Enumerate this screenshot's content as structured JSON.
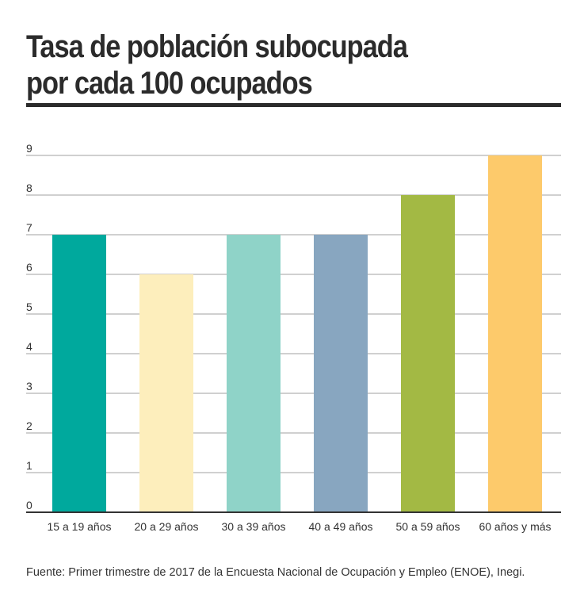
{
  "title_line1": "Tasa de población subocupada",
  "title_line2": "por cada 100 ocupados",
  "source": "Fuente:  Primer trimestre de 2017 de la Encuesta Nacional de Ocupación y Empleo (ENOE), Inegi.",
  "chart_data": {
    "type": "bar",
    "title": "Tasa de población subocupada por cada 100 ocupados",
    "xlabel": "",
    "ylabel": "",
    "categories": [
      "15 a 19 años",
      "20 a 29 años",
      "30 a 39 años",
      "40 a 49 años",
      "50 a 59 años",
      "60 años y más"
    ],
    "values": [
      7,
      6,
      7,
      7,
      8,
      9
    ],
    "colors": [
      "#00a99d",
      "#fdeebc",
      "#8fd3c8",
      "#88a6c0",
      "#a3b944",
      "#fdca6b"
    ],
    "ylim": [
      0,
      9
    ],
    "yticks": [
      "0",
      "1",
      "2",
      "3",
      "4",
      "5",
      "6",
      "7",
      "8",
      "9"
    ],
    "grid": true,
    "legend": "none"
  }
}
